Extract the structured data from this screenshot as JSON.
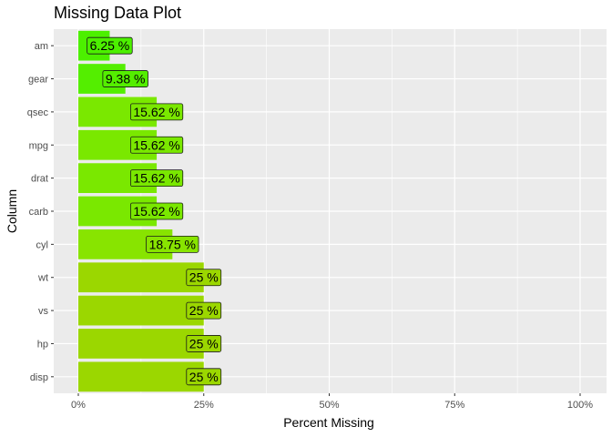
{
  "chart_data": {
    "type": "bar",
    "orientation": "horizontal",
    "title": "Missing Data Plot",
    "xlabel": "Percent Missing",
    "ylabel": "Column",
    "xlim": [
      0,
      100
    ],
    "xticks": [
      0,
      25,
      50,
      75,
      100
    ],
    "xtick_labels": [
      "0%",
      "25%",
      "50%",
      "75%",
      "100%"
    ],
    "categories": [
      "am",
      "gear",
      "qsec",
      "mpg",
      "drat",
      "carb",
      "cyl",
      "wt",
      "vs",
      "hp",
      "disp"
    ],
    "values": [
      6.25,
      9.38,
      15.62,
      15.62,
      15.62,
      15.62,
      18.75,
      25,
      25,
      25,
      25
    ],
    "data_labels": [
      "6.25 %",
      "9.38 %",
      "15.62 %",
      "15.62 %",
      "15.62 %",
      "15.62 %",
      "18.75 %",
      "25 %",
      "25 %",
      "25 %",
      "25 %"
    ],
    "bar_colors": [
      "#4cf000",
      "#54ee00",
      "#7ae800",
      "#7ae800",
      "#7ae800",
      "#7ae800",
      "#88e400",
      "#9bd700",
      "#9bd700",
      "#9bd700",
      "#9bd700"
    ],
    "panel_background": "#ebebeb",
    "grid": true,
    "legend": "none"
  }
}
